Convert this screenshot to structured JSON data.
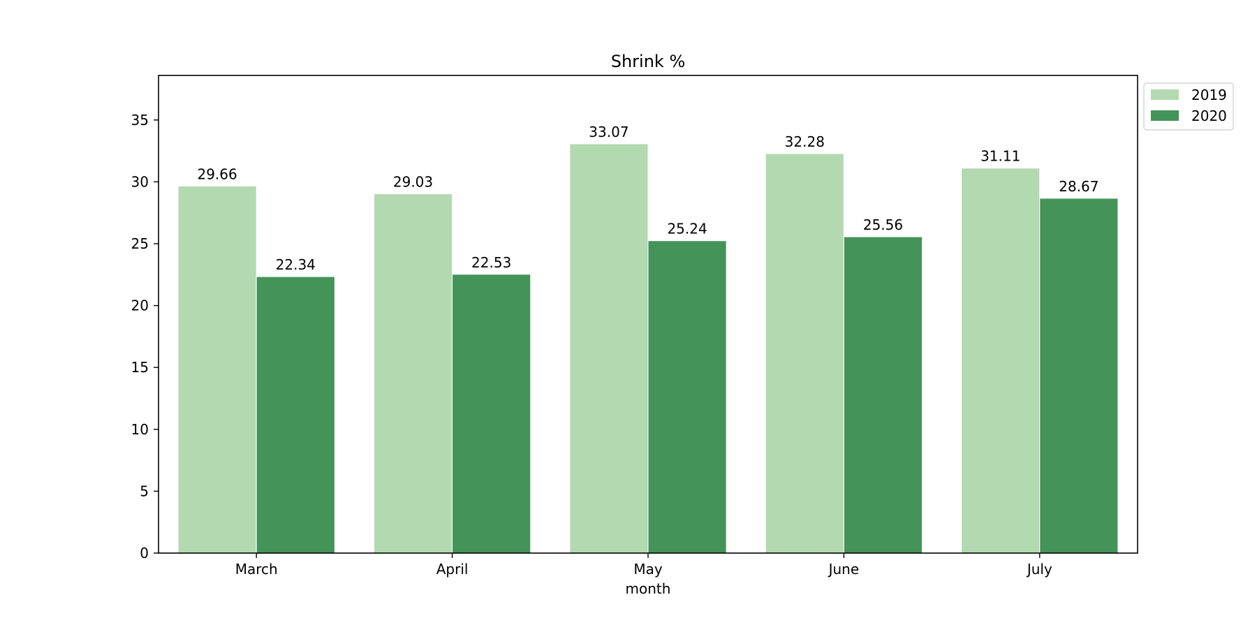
{
  "chart_data": {
    "type": "bar",
    "title": "Shrink %",
    "xlabel": "month",
    "ylabel": "",
    "categories": [
      "March",
      "April",
      "May",
      "June",
      "July"
    ],
    "series": [
      {
        "name": "2019",
        "values": [
          29.66,
          29.03,
          33.07,
          32.28,
          31.11
        ],
        "color": "#b3d9b0"
      },
      {
        "name": "2020",
        "values": [
          22.34,
          22.53,
          25.24,
          25.56,
          28.67
        ],
        "color": "#449358"
      }
    ],
    "ylim": [
      0,
      38.6
    ],
    "yticks": [
      0,
      5,
      10,
      15,
      20,
      25,
      30,
      35
    ],
    "data_labels": true,
    "grid": false,
    "legend": "outside-top-right"
  }
}
